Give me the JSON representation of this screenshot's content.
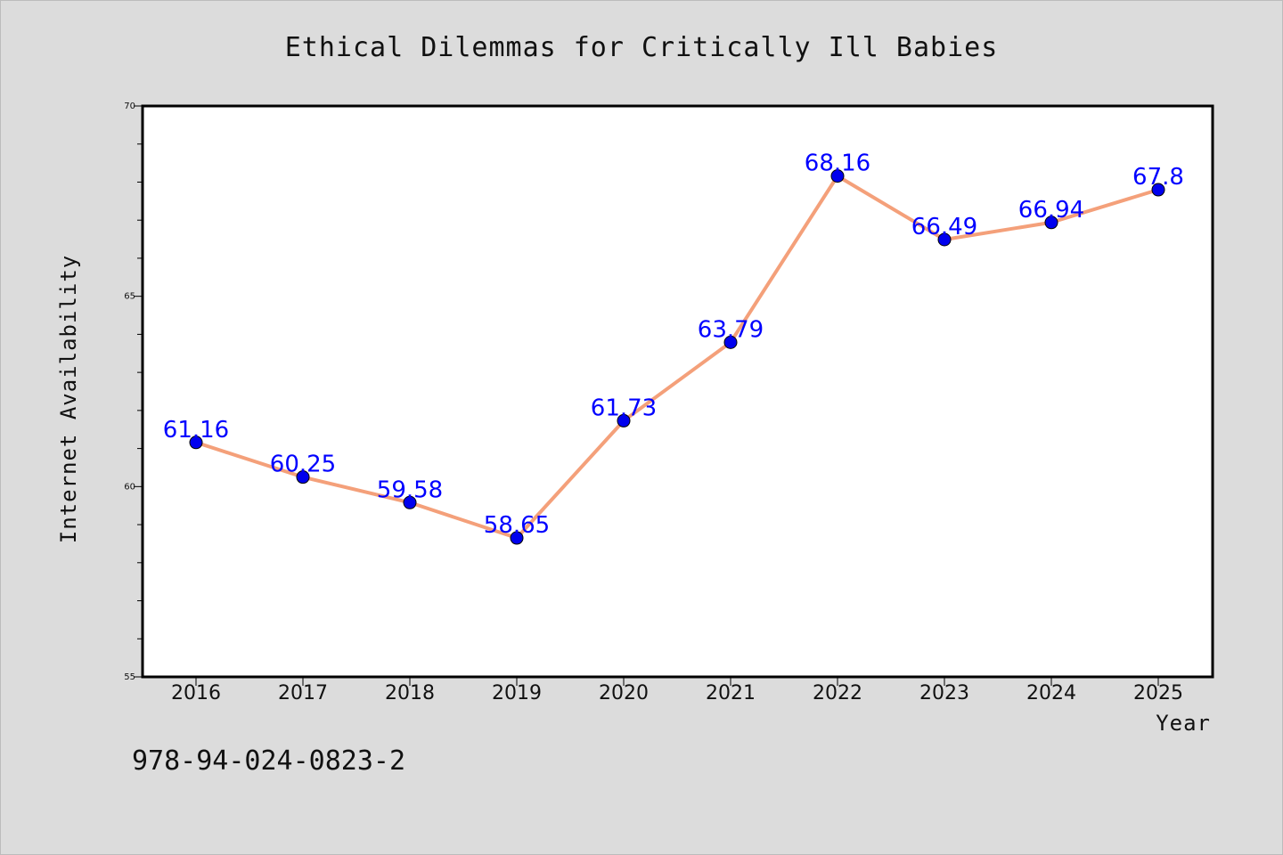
{
  "chart_data": {
    "type": "line",
    "title": "Ethical Dilemmas for Critically Ill Babies",
    "xlabel": "Year",
    "ylabel": "Internet Availability",
    "categories": [
      "2016",
      "2017",
      "2018",
      "2019",
      "2020",
      "2021",
      "2022",
      "2023",
      "2024",
      "2025"
    ],
    "values": [
      61.16,
      60.25,
      59.58,
      58.65,
      61.73,
      63.79,
      68.16,
      66.49,
      66.94,
      67.8
    ],
    "data_labels": [
      "61.16",
      "60.25",
      "59.58",
      "58.65",
      "61.73",
      "63.79",
      "68.16",
      "66.49",
      "66.94",
      "67.8"
    ],
    "ylim": [
      55,
      70
    ],
    "yticks": [
      "55",
      "60",
      "65",
      "70"
    ],
    "grid": false,
    "line_color": "#f4a07a",
    "marker_color": "#0000ee",
    "label_color": "#0000ff"
  },
  "footer_text": "978-94-024-0823-2"
}
